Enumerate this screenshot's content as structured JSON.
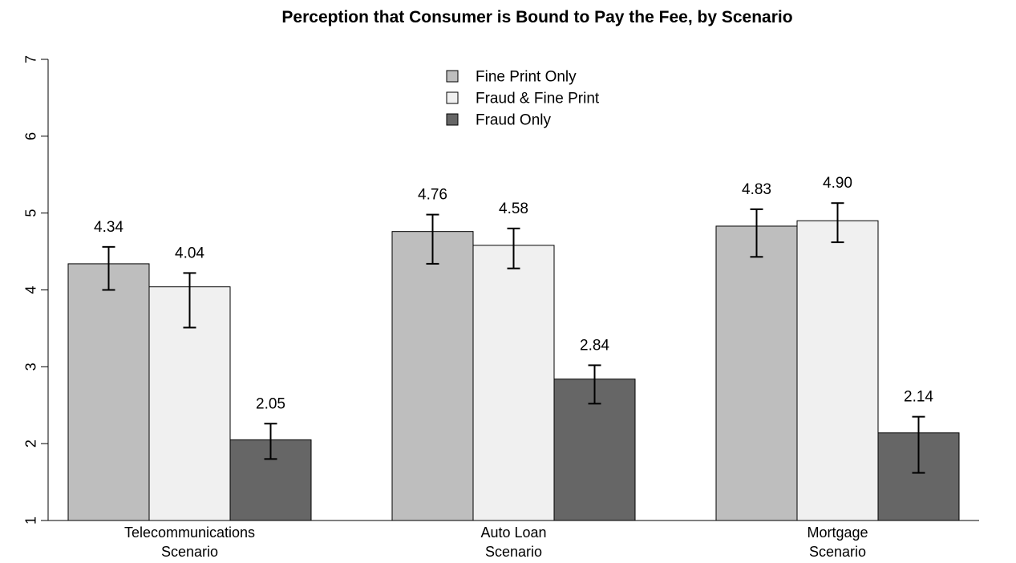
{
  "chart_data": {
    "type": "bar",
    "title": "Perception that Consumer is Bound to Pay the Fee, by Scenario",
    "xlabel": "",
    "ylabel": "",
    "ylim": [
      1,
      7
    ],
    "yticks": [
      1,
      2,
      3,
      4,
      5,
      6,
      7
    ],
    "categories": [
      [
        "Telecommunications",
        "Scenario"
      ],
      [
        "Auto Loan",
        "Scenario"
      ],
      [
        "Mortgage",
        "Scenario"
      ]
    ],
    "series": [
      {
        "name": "Fine Print Only",
        "color": "#bebebe",
        "values": [
          4.34,
          4.76,
          4.83
        ],
        "value_labels": [
          "4.34",
          "4.76",
          "4.83"
        ],
        "error_low": [
          4.0,
          4.34,
          4.43
        ],
        "error_high": [
          4.56,
          4.98,
          5.05
        ]
      },
      {
        "name": "Fraud & Fine Print",
        "color": "#f0f0f0",
        "values": [
          4.04,
          4.58,
          4.9
        ],
        "value_labels": [
          "4.04",
          "4.58",
          "4.90"
        ],
        "error_low": [
          3.51,
          4.28,
          4.62
        ],
        "error_high": [
          4.22,
          4.8,
          5.13
        ]
      },
      {
        "name": "Fraud Only",
        "color": "#666666",
        "values": [
          2.05,
          2.84,
          2.14
        ],
        "value_labels": [
          "2.05",
          "2.84",
          "2.14"
        ],
        "error_low": [
          1.8,
          2.52,
          1.62
        ],
        "error_high": [
          2.26,
          3.02,
          2.35
        ]
      }
    ],
    "legend": {
      "position": "top-center"
    },
    "grid": false
  }
}
